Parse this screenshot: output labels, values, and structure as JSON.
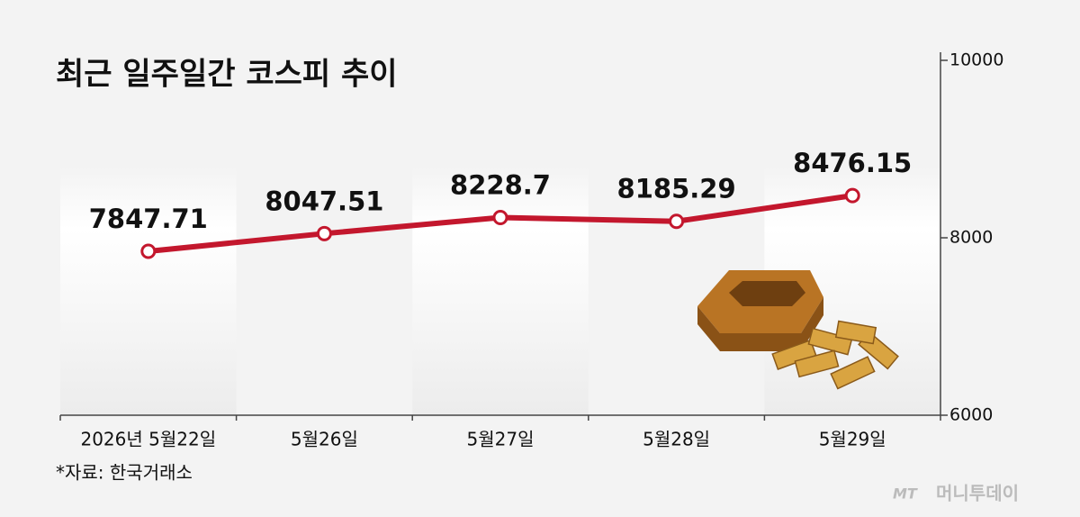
{
  "chart_data": {
    "type": "line",
    "title": "최근 일주일간 코스피 추이",
    "categories": [
      "2026년 5월22일",
      "5월26일",
      "5월27일",
      "5월28일",
      "5월29일"
    ],
    "series": [
      {
        "name": "코스피",
        "color": "#c3172d",
        "values": [
          7847.71,
          8047.51,
          8228.7,
          8185.29,
          8476.15
        ]
      }
    ],
    "ylim": [
      6000,
      10000
    ],
    "yticks": [
      6000,
      8000,
      10000
    ],
    "source": "*자료: 한국거래소",
    "credit_mark": "MT",
    "credit": "머니투데이"
  }
}
